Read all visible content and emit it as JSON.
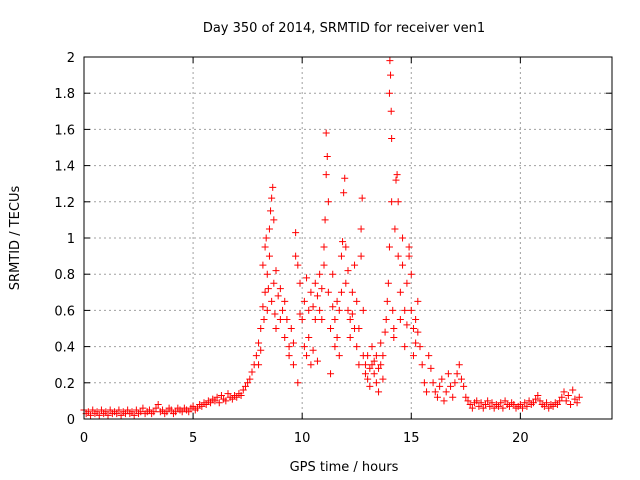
{
  "chart_data": {
    "type": "scatter",
    "title": "Day 350 of 2014, SRMTID for receiver ven1",
    "xlabel": "GPS time / hours",
    "ylabel": "SRMTID / TECUs",
    "xlim": [
      0,
      24.2
    ],
    "ylim": [
      0,
      2
    ],
    "xticks": [
      0,
      5,
      10,
      15,
      20
    ],
    "xtick_labels": [
      "0",
      "5",
      "10",
      "15",
      "20"
    ],
    "yticks": [
      0,
      0.2,
      0.4,
      0.6,
      0.8,
      1,
      1.2,
      1.4,
      1.6,
      1.8,
      2
    ],
    "ytick_labels": [
      "0",
      "0.2",
      "0.4",
      "0.6",
      "0.8",
      "1",
      "1.2",
      "1.4",
      "1.6",
      "1.8",
      "2"
    ],
    "grid": true,
    "marker": "+",
    "color": "#ff0000",
    "series": [
      {
        "name": "SRMTID",
        "points": [
          [
            0.0,
            0.05
          ],
          [
            0.1,
            0.03
          ],
          [
            0.2,
            0.04
          ],
          [
            0.3,
            0.02
          ],
          [
            0.4,
            0.05
          ],
          [
            0.5,
            0.03
          ],
          [
            0.6,
            0.04
          ],
          [
            0.7,
            0.02
          ],
          [
            0.8,
            0.05
          ],
          [
            0.9,
            0.03
          ],
          [
            1.0,
            0.04
          ],
          [
            1.1,
            0.02
          ],
          [
            1.2,
            0.05
          ],
          [
            1.3,
            0.03
          ],
          [
            1.4,
            0.04
          ],
          [
            1.5,
            0.03
          ],
          [
            1.6,
            0.05
          ],
          [
            1.7,
            0.02
          ],
          [
            1.8,
            0.04
          ],
          [
            1.9,
            0.03
          ],
          [
            2.0,
            0.05
          ],
          [
            2.1,
            0.03
          ],
          [
            2.2,
            0.04
          ],
          [
            2.3,
            0.02
          ],
          [
            2.4,
            0.05
          ],
          [
            2.5,
            0.03
          ],
          [
            2.6,
            0.04
          ],
          [
            2.7,
            0.06
          ],
          [
            2.8,
            0.03
          ],
          [
            2.9,
            0.04
          ],
          [
            3.0,
            0.05
          ],
          [
            3.1,
            0.03
          ],
          [
            3.2,
            0.04
          ],
          [
            3.3,
            0.06
          ],
          [
            3.4,
            0.08
          ],
          [
            3.5,
            0.04
          ],
          [
            3.6,
            0.05
          ],
          [
            3.7,
            0.03
          ],
          [
            3.8,
            0.04
          ],
          [
            3.9,
            0.06
          ],
          [
            4.0,
            0.05
          ],
          [
            4.1,
            0.03
          ],
          [
            4.2,
            0.04
          ],
          [
            4.3,
            0.06
          ],
          [
            4.4,
            0.05
          ],
          [
            4.5,
            0.04
          ],
          [
            4.6,
            0.06
          ],
          [
            4.7,
            0.05
          ],
          [
            4.8,
            0.04
          ],
          [
            4.9,
            0.06
          ],
          [
            5.0,
            0.07
          ],
          [
            5.1,
            0.05
          ],
          [
            5.2,
            0.06
          ],
          [
            5.3,
            0.08
          ],
          [
            5.4,
            0.07
          ],
          [
            5.5,
            0.09
          ],
          [
            5.6,
            0.08
          ],
          [
            5.7,
            0.1
          ],
          [
            5.8,
            0.09
          ],
          [
            5.9,
            0.11
          ],
          [
            6.0,
            0.1
          ],
          [
            6.1,
            0.12
          ],
          [
            6.2,
            0.09
          ],
          [
            6.3,
            0.13
          ],
          [
            6.4,
            0.11
          ],
          [
            6.5,
            0.1
          ],
          [
            6.6,
            0.14
          ],
          [
            6.7,
            0.12
          ],
          [
            6.8,
            0.11
          ],
          [
            6.9,
            0.13
          ],
          [
            7.0,
            0.12
          ],
          [
            7.1,
            0.14
          ],
          [
            7.2,
            0.13
          ],
          [
            7.3,
            0.16
          ],
          [
            7.4,
            0.18
          ],
          [
            7.5,
            0.2
          ],
          [
            7.6,
            0.22
          ],
          [
            7.7,
            0.26
          ],
          [
            7.8,
            0.3
          ],
          [
            7.9,
            0.35
          ],
          [
            8.0,
            0.42
          ],
          [
            8.0,
            0.3
          ],
          [
            8.1,
            0.5
          ],
          [
            8.1,
            0.38
          ],
          [
            8.2,
            0.62
          ],
          [
            8.2,
            0.85
          ],
          [
            8.25,
            0.55
          ],
          [
            8.3,
            0.95
          ],
          [
            8.3,
            0.7
          ],
          [
            8.35,
            1.0
          ],
          [
            8.4,
            0.6
          ],
          [
            8.4,
            0.8
          ],
          [
            8.45,
            0.72
          ],
          [
            8.5,
            1.05
          ],
          [
            8.5,
            0.9
          ],
          [
            8.55,
            1.15
          ],
          [
            8.6,
            1.22
          ],
          [
            8.6,
            0.65
          ],
          [
            8.65,
            1.28
          ],
          [
            8.7,
            1.1
          ],
          [
            8.7,
            0.75
          ],
          [
            8.75,
            0.58
          ],
          [
            8.8,
            0.82
          ],
          [
            8.8,
            0.5
          ],
          [
            8.9,
            0.68
          ],
          [
            9.0,
            0.72
          ],
          [
            9.0,
            0.55
          ],
          [
            9.1,
            0.6
          ],
          [
            9.2,
            0.45
          ],
          [
            9.2,
            0.65
          ],
          [
            9.3,
            0.55
          ],
          [
            9.4,
            0.4
          ],
          [
            9.4,
            0.35
          ],
          [
            9.5,
            0.5
          ],
          [
            9.6,
            0.3
          ],
          [
            9.6,
            0.42
          ],
          [
            9.7,
            1.03
          ],
          [
            9.7,
            0.9
          ],
          [
            9.8,
            0.85
          ],
          [
            9.8,
            0.2
          ],
          [
            9.9,
            0.58
          ],
          [
            9.9,
            0.75
          ],
          [
            10.0,
            0.55
          ],
          [
            10.1,
            0.65
          ],
          [
            10.1,
            0.4
          ],
          [
            10.2,
            0.78
          ],
          [
            10.2,
            0.35
          ],
          [
            10.3,
            0.6
          ],
          [
            10.3,
            0.45
          ],
          [
            10.4,
            0.3
          ],
          [
            10.4,
            0.7
          ],
          [
            10.5,
            0.62
          ],
          [
            10.5,
            0.38
          ],
          [
            10.6,
            0.55
          ],
          [
            10.6,
            0.75
          ],
          [
            10.7,
            0.68
          ],
          [
            10.7,
            0.32
          ],
          [
            10.8,
            0.6
          ],
          [
            10.8,
            0.8
          ],
          [
            10.9,
            0.55
          ],
          [
            10.9,
            0.72
          ],
          [
            11.0,
            0.85
          ],
          [
            11.0,
            0.95
          ],
          [
            11.05,
            1.1
          ],
          [
            11.1,
            1.35
          ],
          [
            11.1,
            1.58
          ],
          [
            11.15,
            1.45
          ],
          [
            11.2,
            1.2
          ],
          [
            11.2,
            0.7
          ],
          [
            11.3,
            0.5
          ],
          [
            11.3,
            0.25
          ],
          [
            11.4,
            0.62
          ],
          [
            11.4,
            0.8
          ],
          [
            11.5,
            0.55
          ],
          [
            11.5,
            0.4
          ],
          [
            11.6,
            0.45
          ],
          [
            11.6,
            0.65
          ],
          [
            11.7,
            0.6
          ],
          [
            11.7,
            0.35
          ],
          [
            11.8,
            0.7
          ],
          [
            11.8,
            0.9
          ],
          [
            11.85,
            0.98
          ],
          [
            11.9,
            1.25
          ],
          [
            11.95,
            1.33
          ],
          [
            12.0,
            0.95
          ],
          [
            12.0,
            0.75
          ],
          [
            12.1,
            0.6
          ],
          [
            12.1,
            0.82
          ],
          [
            12.2,
            0.55
          ],
          [
            12.2,
            0.45
          ],
          [
            12.3,
            0.7
          ],
          [
            12.3,
            0.58
          ],
          [
            12.4,
            0.5
          ],
          [
            12.4,
            0.85
          ],
          [
            12.5,
            0.65
          ],
          [
            12.5,
            0.4
          ],
          [
            12.6,
            0.5
          ],
          [
            12.6,
            0.3
          ],
          [
            12.7,
            0.9
          ],
          [
            12.7,
            1.05
          ],
          [
            12.75,
            1.22
          ],
          [
            12.8,
            0.6
          ],
          [
            12.8,
            0.35
          ],
          [
            12.9,
            0.3
          ],
          [
            12.9,
            0.25
          ],
          [
            13.0,
            0.22
          ],
          [
            13.0,
            0.35
          ],
          [
            13.1,
            0.28
          ],
          [
            13.1,
            0.18
          ],
          [
            13.2,
            0.3
          ],
          [
            13.2,
            0.4
          ],
          [
            13.3,
            0.25
          ],
          [
            13.3,
            0.32
          ],
          [
            13.4,
            0.2
          ],
          [
            13.4,
            0.35
          ],
          [
            13.5,
            0.28
          ],
          [
            13.5,
            0.15
          ],
          [
            13.6,
            0.3
          ],
          [
            13.6,
            0.42
          ],
          [
            13.7,
            0.35
          ],
          [
            13.7,
            0.22
          ],
          [
            13.8,
            0.48
          ],
          [
            13.85,
            0.55
          ],
          [
            13.9,
            0.65
          ],
          [
            13.95,
            0.75
          ],
          [
            14.0,
            0.95
          ],
          [
            14.0,
            1.8
          ],
          [
            14.02,
            1.98
          ],
          [
            14.05,
            1.9
          ],
          [
            14.08,
            1.7
          ],
          [
            14.1,
            1.55
          ],
          [
            14.1,
            1.2
          ],
          [
            14.15,
            0.6
          ],
          [
            14.2,
            0.45
          ],
          [
            14.2,
            0.5
          ],
          [
            14.25,
            1.05
          ],
          [
            14.3,
            1.32
          ],
          [
            14.35,
            1.35
          ],
          [
            14.4,
            1.2
          ],
          [
            14.4,
            0.9
          ],
          [
            14.5,
            0.7
          ],
          [
            14.5,
            0.55
          ],
          [
            14.6,
            0.85
          ],
          [
            14.6,
            1.0
          ],
          [
            14.7,
            0.6
          ],
          [
            14.7,
            0.4
          ],
          [
            14.8,
            0.52
          ],
          [
            14.8,
            0.75
          ],
          [
            14.9,
            0.9
          ],
          [
            14.9,
            0.95
          ],
          [
            15.0,
            0.8
          ],
          [
            15.0,
            0.6
          ],
          [
            15.1,
            0.5
          ],
          [
            15.1,
            0.35
          ],
          [
            15.2,
            0.42
          ],
          [
            15.2,
            0.55
          ],
          [
            15.3,
            0.65
          ],
          [
            15.3,
            0.48
          ],
          [
            15.4,
            0.4
          ],
          [
            15.5,
            0.3
          ],
          [
            15.6,
            0.2
          ],
          [
            15.7,
            0.15
          ],
          [
            15.8,
            0.35
          ],
          [
            15.9,
            0.28
          ],
          [
            16.0,
            0.2
          ],
          [
            16.1,
            0.15
          ],
          [
            16.2,
            0.12
          ],
          [
            16.3,
            0.18
          ],
          [
            16.4,
            0.22
          ],
          [
            16.5,
            0.1
          ],
          [
            16.6,
            0.15
          ],
          [
            16.7,
            0.25
          ],
          [
            16.8,
            0.18
          ],
          [
            16.9,
            0.12
          ],
          [
            17.0,
            0.2
          ],
          [
            17.1,
            0.25
          ],
          [
            17.2,
            0.3
          ],
          [
            17.3,
            0.22
          ],
          [
            17.4,
            0.18
          ],
          [
            17.5,
            0.12
          ],
          [
            17.6,
            0.1
          ],
          [
            17.7,
            0.08
          ],
          [
            17.8,
            0.06
          ],
          [
            17.9,
            0.09
          ],
          [
            18.0,
            0.1
          ],
          [
            18.1,
            0.07
          ],
          [
            18.2,
            0.09
          ],
          [
            18.3,
            0.06
          ],
          [
            18.4,
            0.08
          ],
          [
            18.5,
            0.1
          ],
          [
            18.6,
            0.07
          ],
          [
            18.7,
            0.09
          ],
          [
            18.8,
            0.06
          ],
          [
            18.9,
            0.08
          ],
          [
            19.0,
            0.07
          ],
          [
            19.1,
            0.09
          ],
          [
            19.2,
            0.06
          ],
          [
            19.3,
            0.1
          ],
          [
            19.4,
            0.08
          ],
          [
            19.5,
            0.07
          ],
          [
            19.6,
            0.09
          ],
          [
            19.7,
            0.08
          ],
          [
            19.8,
            0.06
          ],
          [
            19.9,
            0.07
          ],
          [
            20.0,
            0.08
          ],
          [
            20.1,
            0.06
          ],
          [
            20.2,
            0.09
          ],
          [
            20.3,
            0.07
          ],
          [
            20.4,
            0.1
          ],
          [
            20.5,
            0.08
          ],
          [
            20.6,
            0.09
          ],
          [
            20.7,
            0.11
          ],
          [
            20.8,
            0.13
          ],
          [
            20.9,
            0.1
          ],
          [
            21.0,
            0.08
          ],
          [
            21.1,
            0.07
          ],
          [
            21.2,
            0.09
          ],
          [
            21.3,
            0.06
          ],
          [
            21.4,
            0.08
          ],
          [
            21.5,
            0.07
          ],
          [
            21.6,
            0.09
          ],
          [
            21.7,
            0.08
          ],
          [
            21.8,
            0.1
          ],
          [
            21.9,
            0.12
          ],
          [
            22.0,
            0.15
          ],
          [
            22.1,
            0.1
          ],
          [
            22.2,
            0.13
          ],
          [
            22.3,
            0.08
          ],
          [
            22.4,
            0.16
          ],
          [
            22.5,
            0.11
          ],
          [
            22.6,
            0.09
          ],
          [
            22.7,
            0.12
          ]
        ]
      }
    ]
  }
}
